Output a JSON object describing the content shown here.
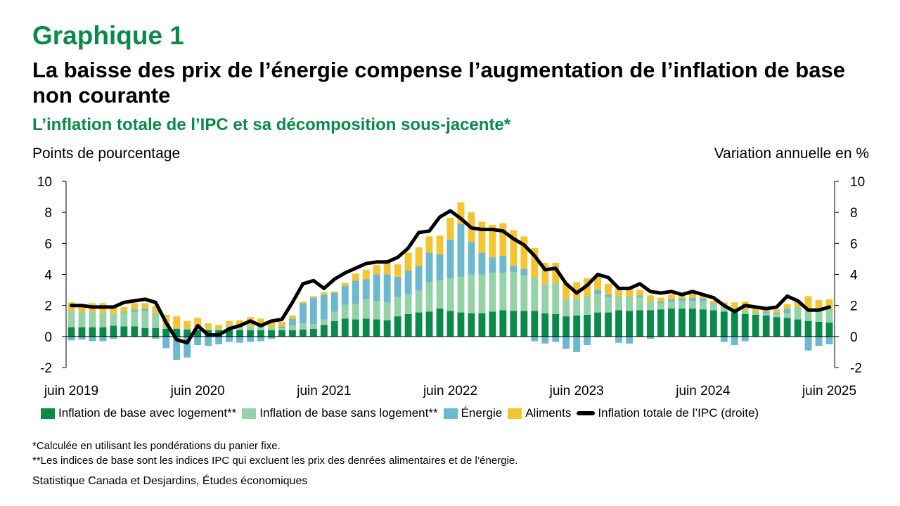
{
  "header": {
    "label": "Graphique 1",
    "title": "La baisse des prix de l’énergie compense l’augmentation de l’inflation de base non courante",
    "subtitle": "L’inflation totale de l’IPC et sa décomposition sous-jacente*"
  },
  "axes": {
    "left_title": "Points de pourcentage",
    "right_title": "Variation annuelle en %"
  },
  "colors": {
    "core_housing": "#0a8a4a",
    "core_nonhousing": "#96d2a8",
    "energy": "#6bb8cf",
    "food": "#f5c431",
    "cpi_line": "#000000"
  },
  "legend": {
    "core_housing": "Inflation de base avec logement**",
    "core_nonhousing": "Inflation de base sans logement**",
    "energy": "Énergie",
    "food": "Aliments",
    "cpi": "Inflation totale de l’IPC (droite)"
  },
  "notes": {
    "note1": "*Calculée en utilisant les pondérations du panier fixe.",
    "note2": "**Les indices de base sont les indices IPC qui excluent les prix des denrées alimentaires et de l’énergie."
  },
  "source": "Statistique Canada et Desjardins, Études économiques",
  "chart_data": {
    "type": "bar",
    "stacked": true,
    "y_left": {
      "min": -2,
      "max": 10,
      "ticks": [
        10,
        8,
        6,
        4,
        2,
        0,
        -2
      ]
    },
    "y_right": {
      "min": -2,
      "max": 10,
      "ticks": [
        10,
        8,
        6,
        4,
        2,
        0,
        -2
      ]
    },
    "x_start": "2019-06",
    "x_end": "2025-06",
    "x_ticks": [
      {
        "index": 0,
        "label": "juin 2019"
      },
      {
        "index": 12,
        "label": "juin 2020"
      },
      {
        "index": 24,
        "label": "juin 2021"
      },
      {
        "index": 36,
        "label": "juin 2022"
      },
      {
        "index": 48,
        "label": "juin 2023"
      },
      {
        "index": 60,
        "label": "juin 2024"
      },
      {
        "index": 72,
        "label": "juin 2025"
      }
    ],
    "series": [
      {
        "name": "Inflation de base avec logement**",
        "key": "core_housing",
        "kind": "bar",
        "values": [
          0.6,
          0.6,
          0.6,
          0.6,
          0.7,
          0.65,
          0.65,
          0.55,
          0.55,
          0.5,
          0.5,
          0.45,
          0.4,
          0.4,
          0.4,
          0.4,
          0.4,
          0.4,
          0.4,
          0.4,
          0.4,
          0.4,
          0.45,
          0.5,
          0.75,
          1.0,
          1.15,
          1.1,
          1.15,
          1.1,
          1.05,
          1.3,
          1.45,
          1.55,
          1.6,
          1.8,
          1.65,
          1.55,
          1.5,
          1.5,
          1.6,
          1.7,
          1.65,
          1.65,
          1.65,
          1.5,
          1.45,
          1.3,
          1.35,
          1.4,
          1.55,
          1.55,
          1.7,
          1.65,
          1.7,
          1.7,
          1.75,
          1.8,
          1.8,
          1.8,
          1.75,
          1.7,
          1.6,
          1.55,
          1.45,
          1.4,
          1.35,
          1.25,
          1.2,
          1.1,
          1.0,
          0.95,
          0.9
        ]
      },
      {
        "name": "Inflation de base sans logement**",
        "key": "core_nonhousing",
        "kind": "bar",
        "values": [
          1.05,
          1.0,
          1.0,
          0.95,
          0.75,
          0.9,
          0.95,
          1.1,
          1.0,
          0.2,
          0.05,
          0.1,
          0.1,
          0.1,
          0.1,
          0.3,
          0.25,
          0.3,
          0.3,
          0.2,
          0.15,
          0.3,
          0.4,
          0.3,
          0.35,
          0.6,
          0.9,
          1.0,
          1.25,
          1.2,
          1.15,
          1.25,
          1.3,
          1.4,
          1.9,
          1.8,
          2.1,
          2.3,
          2.5,
          2.5,
          2.5,
          2.4,
          2.5,
          2.3,
          2.15,
          1.9,
          2.0,
          1.1,
          1.1,
          1.2,
          1.2,
          1.0,
          0.9,
          0.9,
          0.85,
          0.6,
          0.4,
          0.45,
          0.5,
          0.5,
          0.55,
          0.4,
          0.3,
          0.3,
          0.25,
          0.2,
          0.15,
          0.2,
          0.3,
          0.8,
          0.65,
          0.65,
          0.9
        ]
      },
      {
        "name": "Énergie",
        "key": "energy",
        "kind": "bar",
        "values": [
          -0.25,
          -0.2,
          -0.3,
          -0.3,
          -0.15,
          0.05,
          0.15,
          0.15,
          -0.15,
          -0.75,
          -1.5,
          -1.35,
          -0.55,
          -0.6,
          -0.5,
          -0.35,
          -0.4,
          -0.35,
          -0.3,
          -0.15,
          0.1,
          0.45,
          1.3,
          1.7,
          1.6,
          1.2,
          1.2,
          1.5,
          1.3,
          1.7,
          1.8,
          1.3,
          1.5,
          1.6,
          1.9,
          1.7,
          2.5,
          3.4,
          2.1,
          1.4,
          1.0,
          1.1,
          0.4,
          0.4,
          -0.3,
          -0.45,
          -0.35,
          -0.8,
          -1.0,
          -0.55,
          0.25,
          0.15,
          -0.4,
          -0.45,
          0.1,
          -0.15,
          0.1,
          0.15,
          0.15,
          0.2,
          0.15,
          0.05,
          -0.35,
          -0.55,
          -0.3,
          0.0,
          0.1,
          0.1,
          0.3,
          0.0,
          -0.9,
          -0.6,
          -0.5
        ]
      },
      {
        "name": "Aliments",
        "key": "food",
        "kind": "bar",
        "values": [
          0.55,
          0.5,
          0.55,
          0.6,
          0.55,
          0.3,
          0.4,
          0.35,
          0.4,
          0.7,
          0.75,
          0.45,
          0.7,
          0.35,
          0.25,
          0.3,
          0.4,
          0.55,
          0.45,
          0.3,
          0.3,
          0.2,
          0.1,
          0.1,
          0.15,
          0.1,
          0.2,
          0.45,
          0.6,
          0.6,
          0.75,
          0.8,
          1.15,
          1.2,
          1.05,
          1.2,
          1.4,
          1.4,
          1.9,
          2.0,
          2.1,
          2.1,
          2.3,
          2.1,
          1.9,
          1.35,
          1.3,
          1.05,
          1.05,
          1.15,
          0.95,
          0.7,
          0.5,
          0.5,
          0.35,
          0.35,
          0.25,
          0.3,
          0.25,
          0.25,
          0.25,
          0.15,
          0.3,
          0.35,
          0.55,
          0.25,
          0.15,
          0.2,
          0.3,
          0.35,
          0.95,
          0.75,
          0.6
        ]
      },
      {
        "name": "Inflation totale de l’IPC (droite)",
        "key": "cpi",
        "kind": "line",
        "values": [
          2.0,
          2.0,
          1.9,
          1.9,
          1.9,
          2.2,
          2.3,
          2.4,
          2.2,
          0.9,
          -0.2,
          -0.4,
          0.7,
          0.1,
          0.1,
          0.5,
          0.7,
          1.0,
          0.7,
          1.0,
          1.1,
          2.2,
          3.4,
          3.6,
          3.1,
          3.7,
          4.1,
          4.4,
          4.7,
          4.8,
          4.8,
          5.1,
          5.7,
          6.7,
          6.8,
          7.7,
          8.1,
          7.6,
          7.0,
          6.9,
          6.9,
          6.8,
          6.3,
          5.9,
          5.2,
          4.3,
          4.4,
          3.4,
          2.8,
          3.3,
          4.0,
          3.8,
          3.1,
          3.1,
          3.4,
          2.9,
          2.8,
          2.9,
          2.7,
          2.9,
          2.7,
          2.5,
          2.0,
          1.6,
          2.0,
          1.9,
          1.8,
          1.9,
          2.6,
          2.3,
          1.7,
          1.7,
          1.9
        ]
      }
    ]
  }
}
